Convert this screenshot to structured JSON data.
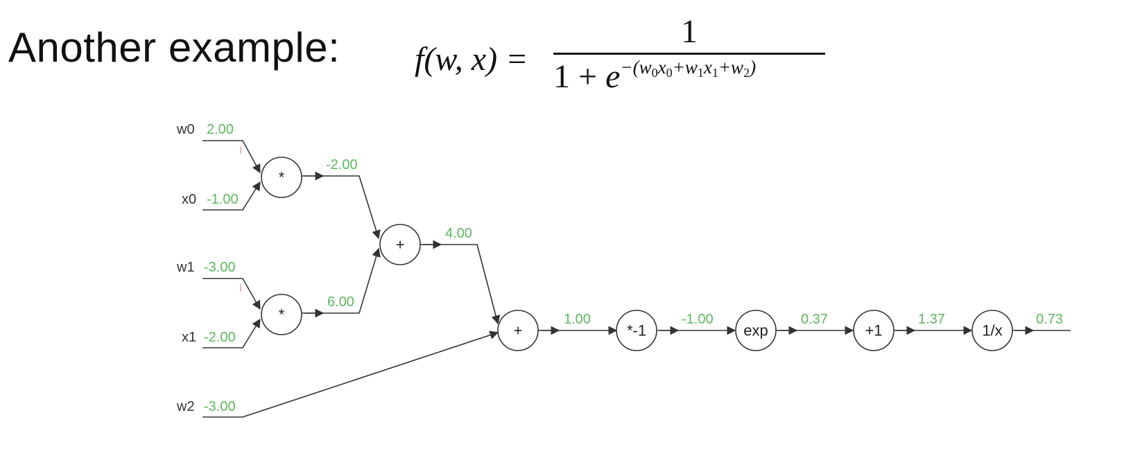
{
  "slide": {
    "heading": "Another example:",
    "formula": {
      "lhs_f": "f",
      "lhs_args": "(w, x) =",
      "numerator": "1",
      "den_prefix": "1 + ",
      "den_e": "e",
      "exp_open": "−(w",
      "sub_w0": "0",
      "x0": "x",
      "sub_x0": "0",
      "plus1": "+w",
      "sub_w1": "1",
      "x1": "x",
      "sub_x1": "1",
      "plus2": "+w",
      "sub_w2": "2",
      "exp_close": ")"
    }
  },
  "graph": {
    "inputs": [
      {
        "label": "w0",
        "value": "2.00"
      },
      {
        "label": "x0",
        "value": "-1.00"
      },
      {
        "label": "w1",
        "value": "-3.00"
      },
      {
        "label": "x1",
        "value": "-2.00"
      },
      {
        "label": "w2",
        "value": "-3.00"
      }
    ],
    "nodes": [
      {
        "op": "*",
        "output": "-2.00"
      },
      {
        "op": "*",
        "output": "6.00"
      },
      {
        "op": "+",
        "output": "4.00"
      },
      {
        "op": "+",
        "output": "1.00"
      },
      {
        "op": "*-1",
        "output": "-1.00"
      },
      {
        "op": "exp",
        "output": "0.37"
      },
      {
        "op": "+1",
        "output": "1.37"
      },
      {
        "op": "1/x",
        "output": "0.73"
      }
    ]
  },
  "colors": {
    "value_green": "#5cb85c",
    "wire": "#333333"
  }
}
